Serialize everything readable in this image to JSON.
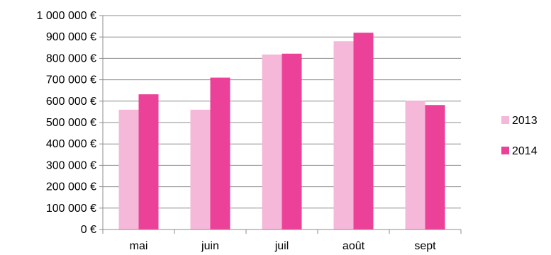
{
  "chart_data": {
    "type": "bar",
    "title": "",
    "xlabel": "",
    "ylabel": "",
    "categories": [
      "mai",
      "juin",
      "juil",
      "août",
      "sept"
    ],
    "series": [
      {
        "name": "2013",
        "color": "#f6b8d8",
        "values": [
          560000,
          560000,
          818000,
          880000,
          602000
        ]
      },
      {
        "name": "2014",
        "color": "#ec4199",
        "values": [
          632000,
          710000,
          822000,
          920000,
          582000
        ]
      }
    ],
    "ylim": [
      0,
      1000000
    ],
    "y_ticks": [
      0,
      100000,
      200000,
      300000,
      400000,
      500000,
      600000,
      700000,
      800000,
      900000,
      1000000
    ],
    "y_tick_labels": [
      "0 €",
      "100 000 €",
      "200 000 €",
      "300 000 €",
      "400 000 €",
      "500 000 €",
      "600 000 €",
      "700 000 €",
      "800 000 €",
      "900 000 €",
      "1 000 000 €"
    ],
    "grid": true,
    "legend_position": "right"
  }
}
